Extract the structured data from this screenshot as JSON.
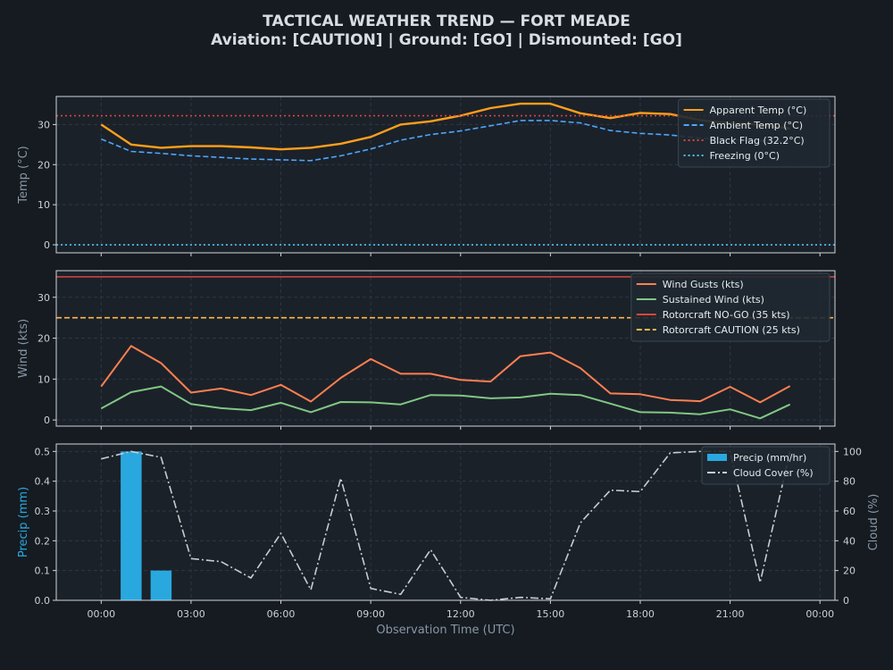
{
  "header": {
    "title": "TACTICAL WEATHER TREND — FORT MEADE",
    "subtitle": "Aviation: [CAUTION]  |  Ground: [GO]  |  Dismounted: [GO]"
  },
  "chart_data": [
    {
      "type": "line",
      "ylabel": "Temp (°C)",
      "ylim": [
        -2,
        37
      ],
      "yticks": [
        0,
        10,
        20,
        30
      ],
      "x_hours": [
        0,
        1,
        2,
        3,
        4,
        5,
        6,
        7,
        8,
        9,
        10,
        11,
        12,
        13,
        14,
        15,
        16,
        17,
        18,
        19,
        20,
        21,
        22,
        23
      ],
      "series": [
        {
          "name": "Apparent Temp (°C)",
          "color": "#ff9f1c",
          "style": "solid",
          "values": [
            30.0,
            25.0,
            24.2,
            24.6,
            24.6,
            24.3,
            23.8,
            24.2,
            25.2,
            26.9,
            30.0,
            30.8,
            32.2,
            34.1,
            35.2,
            35.2,
            32.8,
            31.6,
            32.9,
            32.6,
            31.1,
            30.3,
            30.0,
            29.0
          ]
        },
        {
          "name": "Ambient Temp (°C)",
          "color": "#4da6ff",
          "style": "dashed",
          "values": [
            26.4,
            23.3,
            22.8,
            22.2,
            21.8,
            21.4,
            21.2,
            21.0,
            22.2,
            23.9,
            26.1,
            27.5,
            28.4,
            29.7,
            31.0,
            31.0,
            30.4,
            28.5,
            27.8,
            27.4,
            26.6,
            26.2,
            26.0,
            25.6
          ]
        }
      ],
      "reference_lines": [
        {
          "name": "Black Flag (32.2°C)",
          "value": 32.2,
          "color": "#d9453d",
          "style": "dotted"
        },
        {
          "name": "Freezing (0°C)",
          "value": 0,
          "color": "#4fc3f7",
          "style": "dotted"
        }
      ],
      "legend": "top-right",
      "grid": true
    },
    {
      "type": "line",
      "ylabel": "Wind (kts)",
      "ylim": [
        -1.5,
        36.5
      ],
      "yticks": [
        0,
        10,
        20,
        30
      ],
      "x_hours": [
        0,
        1,
        2,
        3,
        4,
        5,
        6,
        7,
        8,
        9,
        10,
        11,
        12,
        13,
        14,
        15,
        16,
        17,
        18,
        19,
        20,
        21,
        22,
        23
      ],
      "series": [
        {
          "name": "Wind Gusts (kts)",
          "color": "#ff7f50",
          "style": "solid",
          "values": [
            8.2,
            18.1,
            13.9,
            6.7,
            7.7,
            6.1,
            8.6,
            4.5,
            10.3,
            14.9,
            11.3,
            11.3,
            9.8,
            9.4,
            15.6,
            16.5,
            12.7,
            6.5,
            6.3,
            4.9,
            4.6,
            8.1,
            4.3,
            8.3
          ]
        },
        {
          "name": "Sustained Wind (kts)",
          "color": "#81c784",
          "style": "solid",
          "values": [
            2.8,
            6.8,
            8.2,
            3.9,
            2.9,
            2.4,
            4.2,
            1.9,
            4.4,
            4.3,
            3.8,
            6.1,
            6.0,
            5.3,
            5.5,
            6.4,
            6.1,
            4.0,
            1.9,
            1.8,
            1.4,
            2.6,
            0.4,
            3.8
          ]
        }
      ],
      "reference_lines": [
        {
          "name": "Rotorcraft NO-GO (35 kts)",
          "value": 35,
          "color": "#d9453d",
          "style": "solid"
        },
        {
          "name": "Rotorcraft CAUTION (25 kts)",
          "value": 25,
          "color": "#ffb74d",
          "style": "dashed"
        }
      ],
      "legend": "top-right",
      "grid": true
    },
    {
      "type": "bar",
      "ylabel": "Precip (mm)",
      "ylabel_right": "Cloud (%)",
      "xlabel": "Observation Time (UTC)",
      "ylim": [
        0,
        0.525
      ],
      "yticks": [
        0.0,
        0.1,
        0.2,
        0.3,
        0.4,
        0.5
      ],
      "ylim_right": [
        0,
        105
      ],
      "yticks_right": [
        0,
        20,
        40,
        60,
        80,
        100
      ],
      "x_hours": [
        0,
        1,
        2,
        3,
        4,
        5,
        6,
        7,
        8,
        9,
        10,
        11,
        12,
        13,
        14,
        15,
        16,
        17,
        18,
        19,
        20,
        21,
        22,
        23
      ],
      "series": [
        {
          "name": "Precip (mm/hr)",
          "color": "#29a8e0",
          "axis": "left",
          "values": [
            0,
            0.5,
            0.1,
            0,
            0,
            0,
            0,
            0,
            0,
            0,
            0,
            0,
            0,
            0,
            0,
            0,
            0,
            0,
            0,
            0,
            0,
            0,
            0,
            0
          ]
        },
        {
          "name": "Cloud Cover (%)",
          "color": "#c8ccd0",
          "axis": "right",
          "style": "dashdot",
          "values": [
            95,
            100,
            96,
            28,
            26,
            15,
            45,
            7,
            82,
            8,
            4,
            34,
            2,
            0,
            2,
            1,
            52,
            74,
            73,
            99,
            100,
            100,
            12,
            100
          ]
        }
      ],
      "xlim_hours": [
        -1.5,
        24.5
      ],
      "xticks": [
        "00:00",
        "03:00",
        "06:00",
        "09:00",
        "12:00",
        "15:00",
        "18:00",
        "21:00",
        "00:00"
      ],
      "xtick_hours": [
        0,
        3,
        6,
        9,
        12,
        15,
        18,
        21,
        24
      ],
      "legend": "top-right",
      "grid": true
    }
  ]
}
